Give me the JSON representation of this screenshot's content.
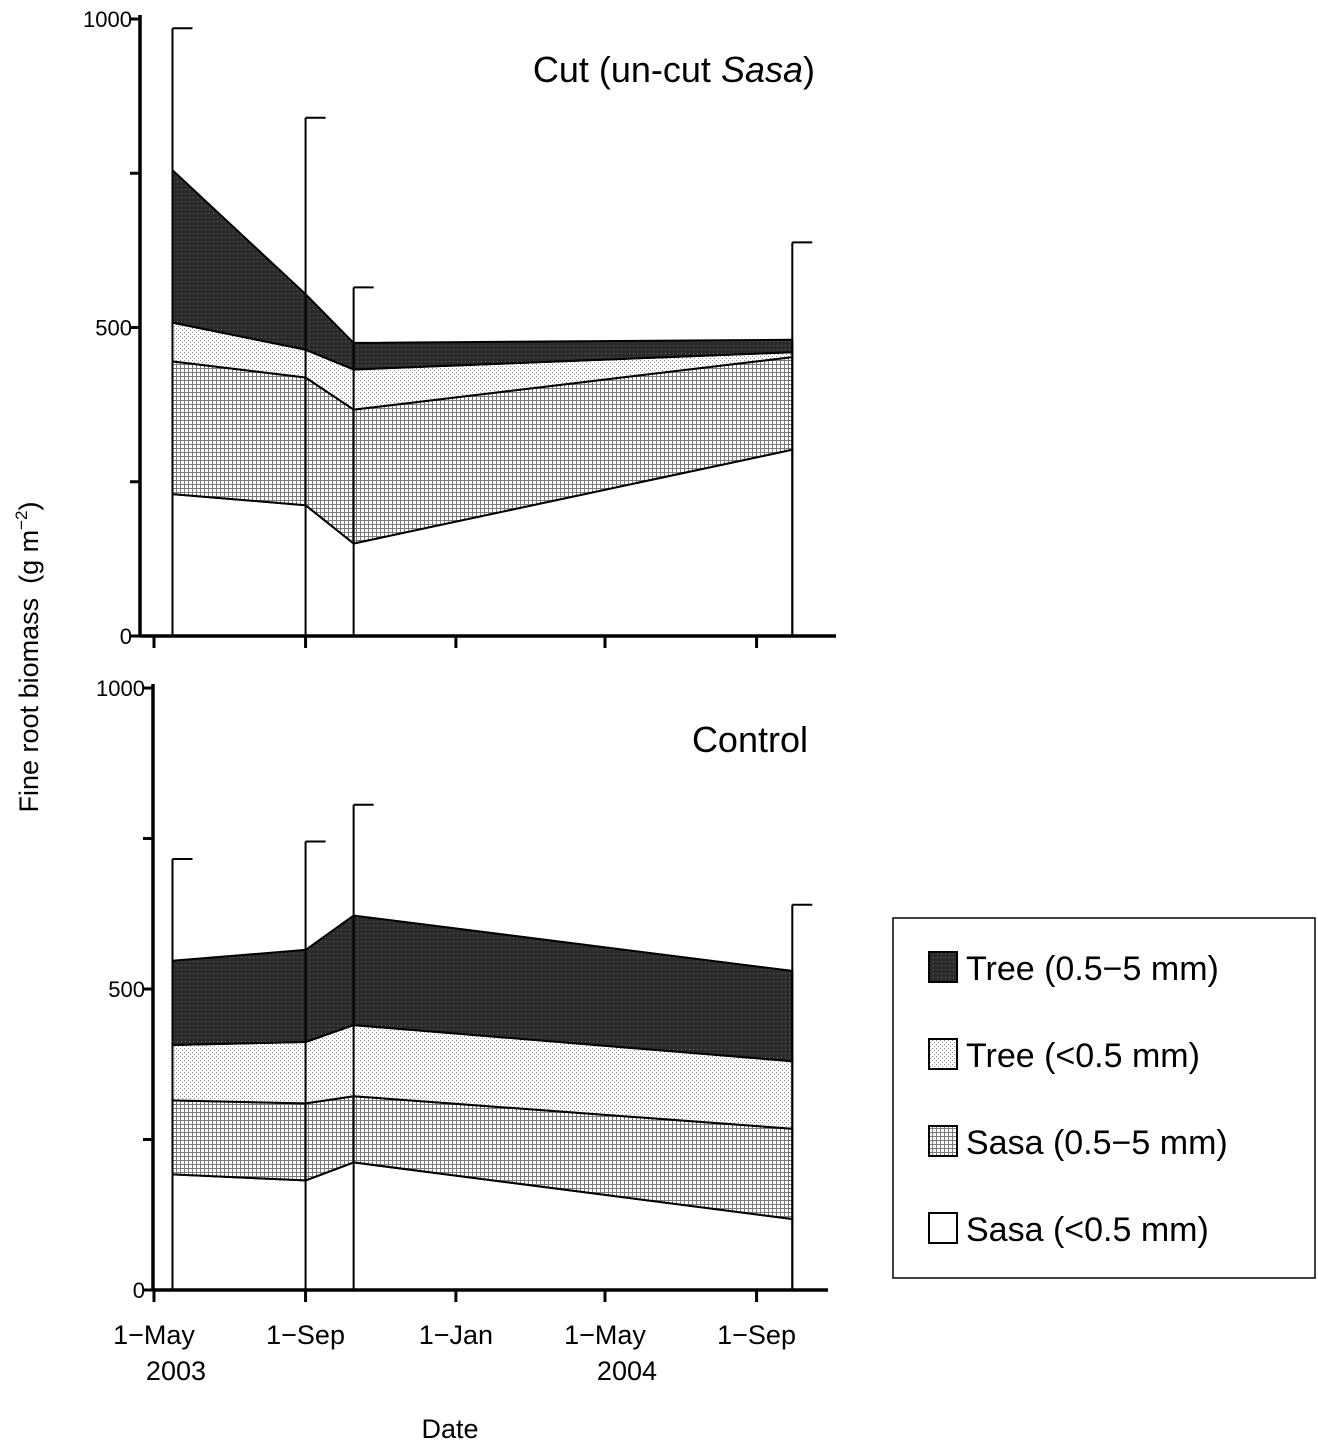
{
  "chart_data": {
    "type": "area",
    "stacked": true,
    "xlabel": "Date",
    "ylabel": "Fine root biomass",
    "ylabel_unit": "(g m",
    "ylabel_unit_exp": "−2",
    "ylabel_unit_close": ")",
    "x_ticks": [
      {
        "date": "2003-05-01",
        "label": "1-May",
        "year": "2003"
      },
      {
        "date": "2003-09-01",
        "label": "1-Sep",
        "year": ""
      },
      {
        "date": "2004-01-01",
        "label": "1-Jan",
        "year": ""
      },
      {
        "date": "2004-05-01",
        "label": "1-May",
        "year": "2004"
      },
      {
        "date": "2004-09-01",
        "label": "1-Sep",
        "year": ""
      }
    ],
    "xlim": [
      "2003-04-12",
      "2004-10-20"
    ],
    "series_order": [
      "Sasa (<0.5 mm)",
      "Sasa (0.5-5 mm)",
      "Tree (<0.5 mm)",
      "Tree (0.5-5 mm)"
    ],
    "legend": {
      "placement": "right",
      "entries": [
        {
          "label": "Tree (0.5−5 mm)",
          "pattern": "dark"
        },
        {
          "label": "Tree (<0.5 mm)",
          "pattern": "dots"
        },
        {
          "label": "Sasa (0.5−5 mm)",
          "pattern": "grid"
        },
        {
          "label": "Sasa (<0.5 mm)",
          "pattern": "white"
        }
      ]
    },
    "panels": [
      {
        "title": "Cut (un-cut ",
        "title_italic": "Sasa",
        "title_close": ")",
        "ylim": [
          0,
          1000
        ],
        "yticks": [
          0,
          250,
          500,
          750,
          1000
        ],
        "ytick_labels": [
          "0",
          "",
          "500",
          "",
          "1000"
        ],
        "dates": [
          "2003-05-16",
          "2003-09-01",
          "2003-10-10",
          "2004-09-30"
        ],
        "series": [
          {
            "name": "Sasa (<0.5 mm)",
            "values": [
              230,
              212,
              150,
              302
            ]
          },
          {
            "name": "Sasa (0.5-5 mm)",
            "values": [
              215,
              207,
              217,
              150
            ]
          },
          {
            "name": "Tree (<0.5 mm)",
            "values": [
              63,
              45,
              65,
              8
            ]
          },
          {
            "name": "Tree (0.5-5 mm)",
            "values": [
              247,
              90,
              43,
              20
            ]
          }
        ],
        "error_bar_tops": [
          985,
          840,
          565,
          638
        ]
      },
      {
        "title": "Control",
        "ylim": [
          0,
          1000
        ],
        "yticks": [
          0,
          250,
          500,
          750,
          1000
        ],
        "ytick_labels": [
          "0",
          "",
          "500",
          "",
          "1000"
        ],
        "dates": [
          "2003-05-16",
          "2003-09-01",
          "2003-10-10",
          "2004-09-30"
        ],
        "series": [
          {
            "name": "Sasa (<0.5 mm)",
            "values": [
              192,
              182,
              212,
              118
            ]
          },
          {
            "name": "Sasa (0.5-5 mm)",
            "values": [
              123,
              128,
              110,
              150
            ]
          },
          {
            "name": "Tree (<0.5 mm)",
            "values": [
              92,
              102,
              118,
              112
            ]
          },
          {
            "name": "Tree (0.5-5 mm)",
            "values": [
              140,
              153,
              182,
              150
            ]
          }
        ],
        "error_bar_tops": [
          716,
          745,
          806,
          640
        ]
      }
    ]
  }
}
